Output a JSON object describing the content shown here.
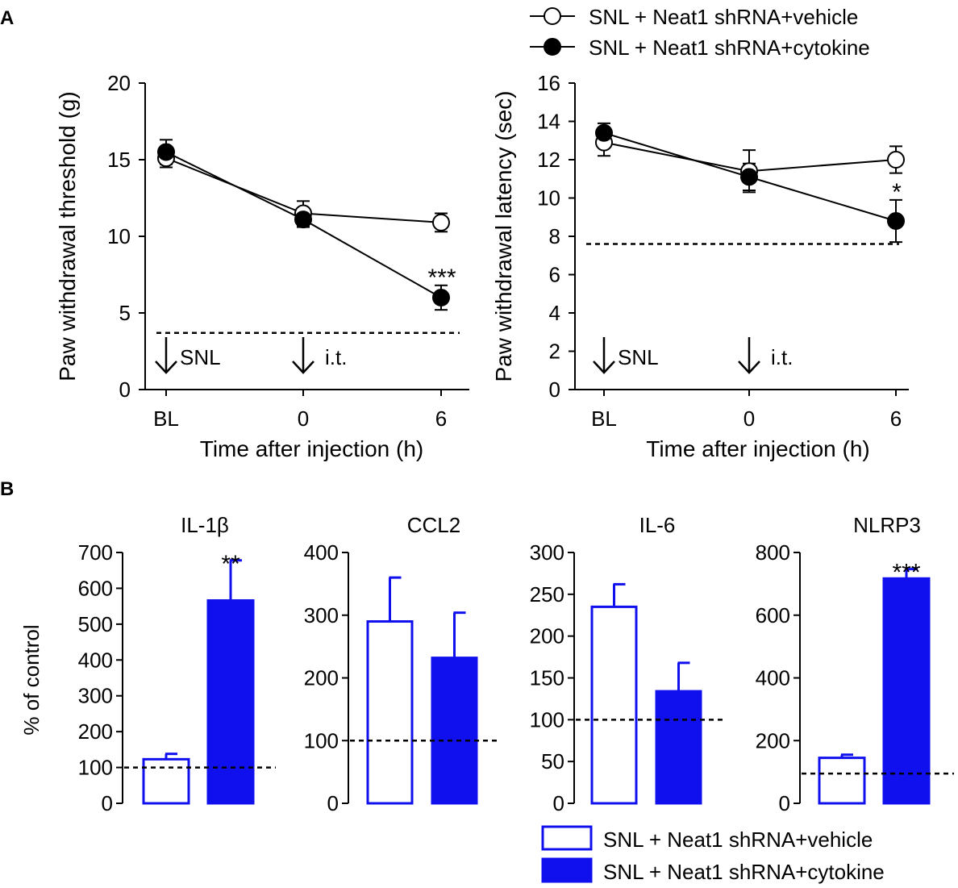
{
  "panel_labels": {
    "a": "A",
    "b": "B"
  },
  "legend_top": {
    "vehicle": "SNL + Neat1 shRNA+vehicle",
    "cytokine": "SNL + Neat1 shRNA+cytokine"
  },
  "legend_bottom": {
    "vehicle": "SNL + Neat1 shRNA+vehicle",
    "cytokine": "SNL + Neat1 shRNA+cytokine"
  },
  "annotations": {
    "snl": "SNL",
    "it": "i.t."
  },
  "bar_ylabel": "% of control",
  "colors": {
    "bar": "#1010ee",
    "line": "#000000",
    "background": "#ffffff"
  },
  "chart_data": [
    {
      "id": "threshold",
      "type": "line",
      "xlabel": "Time after injection (h)",
      "ylabel": "Paw withdrawal threshold (g)",
      "categories": [
        "BL",
        "0",
        "6"
      ],
      "ylim": [
        0,
        20
      ],
      "yticks": [
        0,
        5,
        10,
        15,
        20
      ],
      "baseline": 3.7,
      "significance": "***",
      "series": [
        {
          "name": "SNL + Neat1 shRNA+vehicle",
          "marker": "open",
          "values": [
            15.1,
            11.5,
            10.9
          ],
          "errors": [
            0.6,
            0.8,
            0.6
          ]
        },
        {
          "name": "SNL + Neat1 shRNA+cytokine",
          "marker": "filled",
          "values": [
            15.5,
            11.1,
            6.0
          ],
          "errors": [
            0.8,
            0.5,
            0.8
          ]
        }
      ]
    },
    {
      "id": "latency",
      "type": "line",
      "xlabel": "Time after injection (h)",
      "ylabel": "Paw withdrawal latency (sec)",
      "categories": [
        "BL",
        "0",
        "6"
      ],
      "ylim": [
        0,
        16
      ],
      "yticks": [
        0,
        2,
        4,
        6,
        8,
        10,
        12,
        14,
        16
      ],
      "baseline": 7.6,
      "significance": "*",
      "series": [
        {
          "name": "SNL + Neat1 shRNA+vehicle",
          "marker": "open",
          "values": [
            12.9,
            11.4,
            12.0
          ],
          "errors": [
            0.7,
            1.1,
            0.7
          ]
        },
        {
          "name": "SNL + Neat1 shRNA+cytokine",
          "marker": "filled",
          "values": [
            13.4,
            11.1,
            8.8
          ],
          "errors": [
            0.5,
            0.7,
            1.1
          ]
        }
      ]
    },
    {
      "id": "il1b",
      "type": "bar",
      "title": "IL-1β",
      "ylim": [
        0,
        700
      ],
      "yticks": [
        0,
        100,
        200,
        300,
        400,
        500,
        600,
        700
      ],
      "baseline": 100,
      "significance": "**",
      "series": [
        {
          "name": "SNL + Neat1 shRNA+vehicle",
          "fill": "open",
          "value": 123,
          "error": 15
        },
        {
          "name": "SNL + Neat1 shRNA+cytokine",
          "fill": "filled",
          "value": 566,
          "error": 112
        }
      ]
    },
    {
      "id": "ccl2",
      "type": "bar",
      "title": "CCL2",
      "ylim": [
        0,
        400
      ],
      "yticks": [
        0,
        100,
        200,
        300,
        400
      ],
      "baseline": 100,
      "significance": "",
      "series": [
        {
          "name": "SNL + Neat1 shRNA+vehicle",
          "fill": "open",
          "value": 290,
          "error": 70
        },
        {
          "name": "SNL + Neat1 shRNA+cytokine",
          "fill": "filled",
          "value": 232,
          "error": 72
        }
      ]
    },
    {
      "id": "il6",
      "type": "bar",
      "title": "IL-6",
      "ylim": [
        0,
        300
      ],
      "yticks": [
        0,
        50,
        100,
        150,
        200,
        250,
        300
      ],
      "baseline": 100,
      "significance": "",
      "series": [
        {
          "name": "SNL + Neat1 shRNA+vehicle",
          "fill": "open",
          "value": 235,
          "error": 27
        },
        {
          "name": "SNL + Neat1 shRNA+cytokine",
          "fill": "filled",
          "value": 134,
          "error": 34
        }
      ]
    },
    {
      "id": "nlrp3",
      "type": "bar",
      "title": "NLRP3",
      "ylim": [
        0,
        800
      ],
      "yticks": [
        0,
        200,
        400,
        600,
        800
      ],
      "baseline": 95,
      "significance": "***",
      "series": [
        {
          "name": "SNL + Neat1 shRNA+vehicle",
          "fill": "open",
          "value": 145,
          "error": 10
        },
        {
          "name": "SNL + Neat1 shRNA+cytokine",
          "fill": "filled",
          "value": 717,
          "error": 30
        }
      ]
    }
  ]
}
